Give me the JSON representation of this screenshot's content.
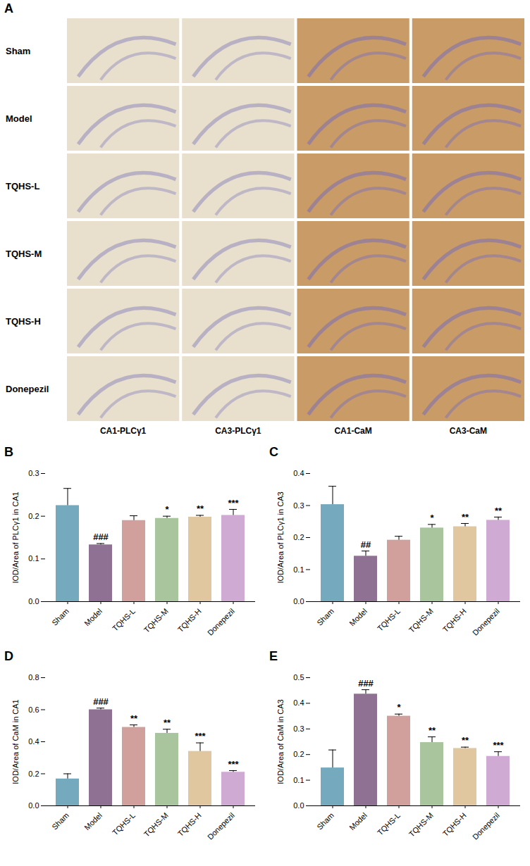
{
  "panel_a": {
    "panel_label": "A",
    "rows": [
      "Sham",
      "Model",
      "TQHS-L",
      "TQHS-M",
      "TQHS-H",
      "Donepezil"
    ],
    "columns": [
      "CA1-PLCγ1",
      "CA3-PLCγ1",
      "CA1-CaM",
      "CA3-CaM"
    ]
  },
  "chart_data": [
    {
      "type": "bar",
      "panel_label": "B",
      "y_label": "IOD/Area of PLCγ1 in CA1",
      "categories": [
        "Sham",
        "Model",
        "TQHS-L",
        "TQHS-M",
        "TQHS-H",
        "Donepezil"
      ],
      "values": [
        0.225,
        0.133,
        0.19,
        0.195,
        0.198,
        0.202
      ],
      "errors": [
        0.04,
        0.003,
        0.011,
        0.005,
        0.004,
        0.014
      ],
      "significance": [
        null,
        "###",
        null,
        "*",
        "**",
        "***"
      ],
      "colors": [
        "#75a9be",
        "#8f7293",
        "#d1a09c",
        "#a9c59e",
        "#e0c7a0",
        "#cfaad3"
      ],
      "ylim": [
        0,
        0.3
      ],
      "yticks": [
        {
          "value": 0,
          "label": "0.0"
        },
        0.1,
        0.2,
        0.3
      ]
    },
    {
      "type": "bar",
      "panel_label": "C",
      "y_label": "IOD/Area of PLCγ1 in CA3",
      "categories": [
        "Sham",
        "Model",
        "TQHS-L",
        "TQHS-M",
        "TQHS-H",
        "Donepezil"
      ],
      "values": [
        0.303,
        0.142,
        0.192,
        0.23,
        0.234,
        0.254
      ],
      "errors": [
        0.057,
        0.016,
        0.012,
        0.011,
        0.01,
        0.01
      ],
      "significance": [
        null,
        "##",
        null,
        "*",
        "**",
        "**"
      ],
      "colors": [
        "#75a9be",
        "#8f7293",
        "#d1a09c",
        "#a9c59e",
        "#e0c7a0",
        "#cfaad3"
      ],
      "ylim": [
        0,
        0.4
      ],
      "yticks": [
        {
          "value": 0,
          "label": "0.0"
        },
        0.1,
        0.2,
        0.3,
        0.4
      ]
    },
    {
      "type": "bar",
      "panel_label": "D",
      "y_label": "IOD/Area of CaM in CA1",
      "categories": [
        "Sham",
        "Model",
        "TQHS-L",
        "TQHS-M",
        "TQHS-H",
        "Donepezil"
      ],
      "values": [
        0.168,
        0.6,
        0.49,
        0.453,
        0.34,
        0.21
      ],
      "errors": [
        0.032,
        0.01,
        0.015,
        0.025,
        0.053,
        0.01
      ],
      "significance": [
        null,
        "###",
        "**",
        "**",
        "***",
        "***"
      ],
      "colors": [
        "#75a9be",
        "#8f7293",
        "#d1a09c",
        "#a9c59e",
        "#e0c7a0",
        "#cfaad3"
      ],
      "ylim": [
        0,
        0.8
      ],
      "yticks": [
        {
          "value": 0,
          "label": "0.0"
        },
        0.2,
        0.4,
        0.6,
        0.8
      ]
    },
    {
      "type": "bar",
      "panel_label": "E",
      "y_label": "IOD/Area of CaM in CA3",
      "categories": [
        "Sham",
        "Model",
        "TQHS-L",
        "TQHS-M",
        "TQHS-H",
        "Donepezil"
      ],
      "values": [
        0.148,
        0.436,
        0.35,
        0.247,
        0.224,
        0.193
      ],
      "errors": [
        0.07,
        0.017,
        0.008,
        0.022,
        0.005,
        0.018
      ],
      "significance": [
        null,
        "###",
        "*",
        "**",
        "**",
        "***"
      ],
      "colors": [
        "#75a9be",
        "#8f7293",
        "#d1a09c",
        "#a9c59e",
        "#e0c7a0",
        "#cfaad3"
      ],
      "ylim": [
        0,
        0.5
      ],
      "yticks": [
        {
          "value": 0,
          "label": "0.0"
        },
        0.1,
        0.2,
        0.3,
        0.4,
        0.5
      ]
    }
  ]
}
